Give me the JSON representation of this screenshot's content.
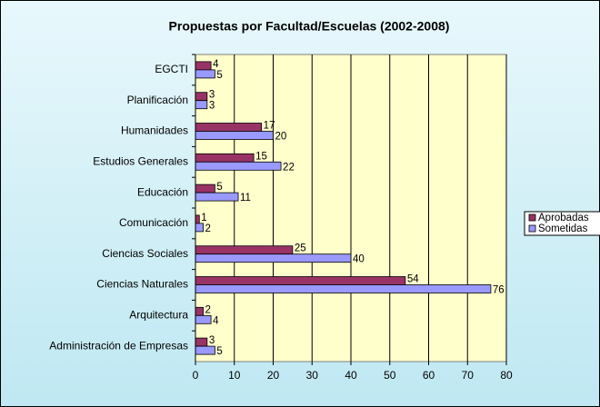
{
  "chart_data": {
    "type": "hbar",
    "title": "Propuestas por Facultad/Escuelas (2002-2008)",
    "categories": [
      "EGCTI",
      "Planificación",
      "Humanidades",
      "Estudios Generales",
      "Educación",
      "Comunicación",
      "Ciencias Sociales",
      "Ciencias Naturales",
      "Arquitectura",
      "Administración de Empresas"
    ],
    "series": [
      {
        "name": "Aprobadas",
        "color": "#993366",
        "values": [
          4,
          3,
          17,
          15,
          5,
          1,
          25,
          54,
          2,
          3
        ]
      },
      {
        "name": "Sometidas",
        "color": "#9999ff",
        "values": [
          5,
          3,
          20,
          22,
          11,
          2,
          40,
          76,
          4,
          5
        ]
      }
    ],
    "xlim": [
      0,
      80
    ],
    "xticks": [
      0,
      10,
      20,
      30,
      40,
      50,
      60,
      70,
      80
    ],
    "grid": true,
    "legend": "right"
  }
}
